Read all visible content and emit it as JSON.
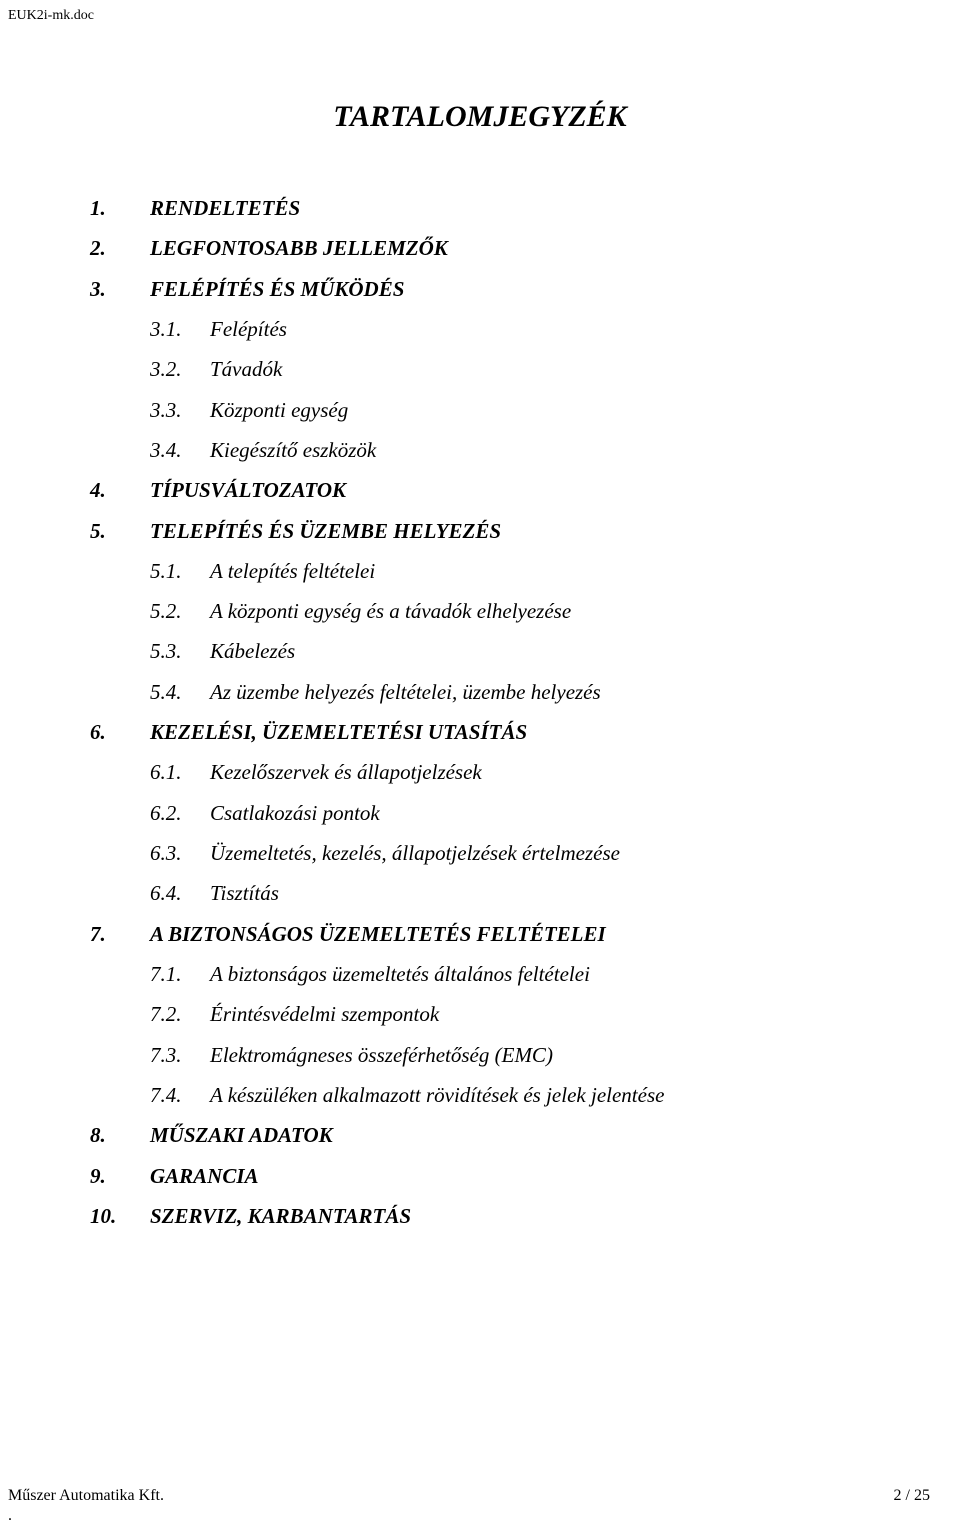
{
  "header": {
    "filename": "EUK2i-mk.doc"
  },
  "title": "TARTALOMJEGYZÉK",
  "toc": {
    "i1": {
      "num": "1.",
      "text": "RENDELTETÉS"
    },
    "i2": {
      "num": "2.",
      "text": "LEGFONTOSABB JELLEMZŐK"
    },
    "i3": {
      "num": "3.",
      "text": "FELÉPÍTÉS ÉS MŰKÖDÉS"
    },
    "i31": {
      "num": "3.1.",
      "text": "Felépítés"
    },
    "i32": {
      "num": "3.2.",
      "text": "Távadók"
    },
    "i33": {
      "num": "3.3.",
      "text": "Központi egység"
    },
    "i34": {
      "num": "3.4.",
      "text": "Kiegészítő eszközök"
    },
    "i4": {
      "num": "4.",
      "text": "TÍPUSVÁLTOZATOK"
    },
    "i5": {
      "num": "5.",
      "text": "TELEPÍTÉS ÉS ÜZEMBE HELYEZÉS"
    },
    "i51": {
      "num": "5.1.",
      "text": "A telepítés feltételei"
    },
    "i52": {
      "num": "5.2.",
      "text": "A központi egység és a távadók elhelyezése"
    },
    "i53": {
      "num": "5.3.",
      "text": "Kábelezés"
    },
    "i54": {
      "num": "5.4.",
      "text": "Az üzembe helyezés feltételei, üzembe helyezés"
    },
    "i6": {
      "num": "6.",
      "text": "KEZELÉSI, ÜZEMELTETÉSI UTASÍTÁS"
    },
    "i61": {
      "num": "6.1.",
      "text": "Kezelőszervek és állapotjelzések"
    },
    "i62": {
      "num": "6.2.",
      "text": "Csatlakozási pontok"
    },
    "i63": {
      "num": "6.3.",
      "text": "Üzemeltetés, kezelés, állapotjelzések értelmezése"
    },
    "i64": {
      "num": "6.4.",
      "text": "Tisztítás"
    },
    "i7": {
      "num": "7.",
      "text": "A BIZTONSÁGOS ÜZEMELTETÉS FELTÉTELEI"
    },
    "i71": {
      "num": "7.1.",
      "text": "A biztonságos üzemeltetés általános feltételei"
    },
    "i72": {
      "num": "7.2.",
      "text": "Érintésvédelmi szempontok"
    },
    "i73": {
      "num": "7.3.",
      "text": "Elektromágneses összeférhetőség (EMC)"
    },
    "i74": {
      "num": "7.4.",
      "text": "A készüléken alkalmazott rövidítések és jelek jelentése"
    },
    "i8": {
      "num": "8.",
      "text": "MŰSZAKI ADATOK"
    },
    "i9": {
      "num": "9.",
      "text": "GARANCIA"
    },
    "i10": {
      "num": "10.",
      "text": "SZERVIZ, KARBANTARTÁS"
    }
  },
  "footer": {
    "left": "Műszer Automatika Kft.",
    "right": "2  / 25",
    "dot": "."
  }
}
